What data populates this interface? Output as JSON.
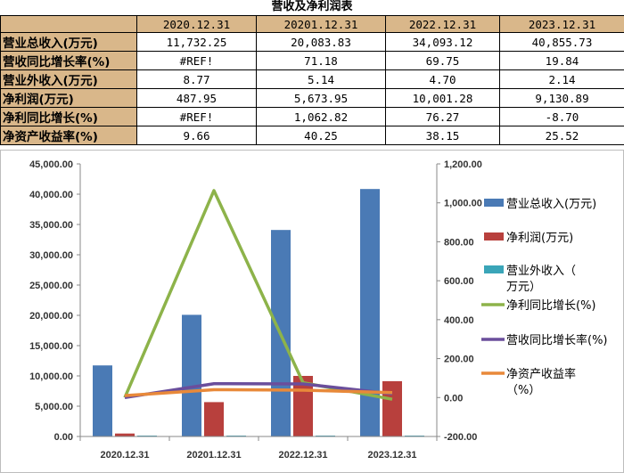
{
  "title": "营收及净利润表",
  "table": {
    "header": [
      "",
      "2020.12.31",
      "20201.12.31",
      "2022.12.31",
      "2023.12.31"
    ],
    "rows": [
      {
        "label": "营业总收入(万元)",
        "values": [
          "11,732.25",
          "20,083.83",
          "34,093.12",
          "40,855.73"
        ]
      },
      {
        "label": "营收同比增长率(%)",
        "values": [
          "#REF!",
          "71.18",
          "69.75",
          "19.84"
        ]
      },
      {
        "label": "营业外收入(万元)",
        "values": [
          "8.77",
          "5.14",
          "4.70",
          "2.14"
        ]
      },
      {
        "label": "净利润(万元)",
        "values": [
          "487.95",
          "5,673.95",
          "10,001.28",
          "9,130.89"
        ]
      },
      {
        "label": "净利同比增长(%)",
        "values": [
          "#REF!",
          "1,062.82",
          "76.27",
          "-8.70"
        ]
      },
      {
        "label": "净资产收益率(%)",
        "values": [
          "9.66",
          "40.25",
          "38.15",
          "25.52"
        ]
      }
    ]
  },
  "chart_data": {
    "type": "bar",
    "categories": [
      "2020.12.31",
      "20201.12.31",
      "2022.12.31",
      "2023.12.31"
    ],
    "ylim_left": [
      0,
      45000
    ],
    "ylim_right": [
      -200,
      1200
    ],
    "left_ticks": [
      "0.00",
      "5,000.00",
      "10,000.00",
      "15,000.00",
      "20,000.00",
      "25,000.00",
      "30,000.00",
      "35,000.00",
      "40,000.00",
      "45,000.00"
    ],
    "right_ticks": [
      "-200.00",
      "0.00",
      "200.00",
      "400.00",
      "600.00",
      "800.00",
      "1,000.00",
      "1,200.00"
    ],
    "bar_series": [
      {
        "name": "营业总收入(万元)",
        "color": "#4a7ab5",
        "values": [
          11732.25,
          20083.83,
          34093.12,
          40855.73
        ]
      },
      {
        "name": "净利润(万元)",
        "color": "#b8403d",
        "values": [
          487.95,
          5673.95,
          10001.28,
          9130.89
        ]
      },
      {
        "name": "营业外收入（万元）",
        "color": "#3aa5b8",
        "values": [
          8.77,
          5.14,
          4.7,
          2.14
        ]
      }
    ],
    "line_series": [
      {
        "name": "净利同比增长(%)",
        "color": "#8db34a",
        "values": [
          0,
          1062.82,
          76.27,
          -8.7
        ]
      },
      {
        "name": "营收同比增长率(%)",
        "color": "#6a4e9c",
        "values": [
          0,
          71.18,
          69.75,
          19.84
        ]
      },
      {
        "name": "净资产收益率（%）",
        "color": "#e8893a",
        "values": [
          9.66,
          40.25,
          38.15,
          25.52
        ]
      }
    ]
  }
}
